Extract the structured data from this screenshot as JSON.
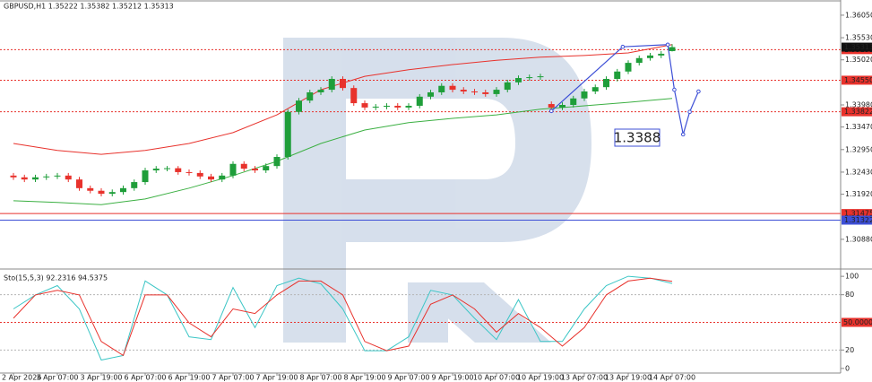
{
  "chart_data": [
    {
      "type": "candlestick",
      "title": "GBPUSD,H1  1.35222 1.35382 1.35212 1.35313",
      "categories": [
        "2 Apr 2026",
        null,
        null,
        null,
        "3 Apr 07:00",
        null,
        null,
        null,
        "3 Apr 19:00",
        null,
        null,
        null,
        "6 Apr 07:00",
        null,
        null,
        null,
        "6 Apr 19:00",
        null,
        null,
        null,
        "7 Apr 07:00",
        null,
        null,
        null,
        "7 Apr 19:00",
        null,
        null,
        null,
        "8 Apr 07:00",
        null,
        null,
        null,
        "8 Apr 19:00",
        null,
        null,
        null,
        "9 Apr 07:00",
        null,
        null,
        null,
        "9 Apr 19:00",
        null,
        null,
        null,
        "10 Apr 07:00",
        null,
        null,
        null,
        "10 Apr 19:00",
        null,
        null,
        null,
        "13 Apr 07:00",
        null,
        null,
        null,
        "13 Apr 19:00",
        null,
        null,
        null,
        "14 Apr 07:00"
      ],
      "ohlc": [
        [
          1.3235,
          1.3241,
          1.3225,
          1.3231
        ],
        [
          1.3231,
          1.3237,
          1.322,
          1.3226
        ],
        [
          1.3226,
          1.3237,
          1.322,
          1.3231
        ],
        [
          1.3231,
          1.3239,
          1.3225,
          1.3233
        ],
        [
          1.3233,
          1.3241,
          1.3227,
          1.3235
        ],
        [
          1.3235,
          1.3241,
          1.322,
          1.3226
        ],
        [
          1.3226,
          1.3232,
          1.32,
          1.3206
        ],
        [
          1.3206,
          1.3212,
          1.3194,
          1.32
        ],
        [
          1.32,
          1.3206,
          1.3187,
          1.3193
        ],
        [
          1.3193,
          1.3203,
          1.3187,
          1.3197
        ],
        [
          1.3197,
          1.3212,
          1.3191,
          1.3206
        ],
        [
          1.3206,
          1.3226,
          1.32,
          1.322
        ],
        [
          1.322,
          1.3253,
          1.3214,
          1.3247
        ],
        [
          1.3247,
          1.3257,
          1.3241,
          1.3251
        ],
        [
          1.3251,
          1.3257,
          1.3245,
          1.3252
        ],
        [
          1.3252,
          1.3257,
          1.3237,
          1.3243
        ],
        [
          1.3243,
          1.3249,
          1.3235,
          1.3241
        ],
        [
          1.3241,
          1.3247,
          1.3227,
          1.3233
        ],
        [
          1.3233,
          1.3239,
          1.322,
          1.3226
        ],
        [
          1.3226,
          1.3241,
          1.322,
          1.3235
        ],
        [
          1.3235,
          1.3268,
          1.3229,
          1.3262
        ],
        [
          1.3262,
          1.3268,
          1.3245,
          1.3251
        ],
        [
          1.3251,
          1.3257,
          1.3241,
          1.3247
        ],
        [
          1.3247,
          1.3263,
          1.3241,
          1.3257
        ],
        [
          1.3257,
          1.3284,
          1.3251,
          1.3278
        ],
        [
          1.3278,
          1.3388,
          1.3272,
          1.3382
        ],
        [
          1.3382,
          1.3414,
          1.3376,
          1.3408
        ],
        [
          1.3408,
          1.3433,
          1.3402,
          1.3427
        ],
        [
          1.3427,
          1.3439,
          1.3421,
          1.3433
        ],
        [
          1.3433,
          1.3464,
          1.3427,
          1.3458
        ],
        [
          1.3458,
          1.3464,
          1.3431,
          1.3437
        ],
        [
          1.3437,
          1.3443,
          1.3396,
          1.3402
        ],
        [
          1.3402,
          1.3408,
          1.3386,
          1.3392
        ],
        [
          1.3392,
          1.34,
          1.3386,
          1.3394
        ],
        [
          1.3394,
          1.3402,
          1.3388,
          1.3396
        ],
        [
          1.3396,
          1.3402,
          1.3386,
          1.3392
        ],
        [
          1.3392,
          1.3402,
          1.3386,
          1.3396
        ],
        [
          1.3396,
          1.3423,
          1.339,
          1.3417
        ],
        [
          1.3417,
          1.3433,
          1.3411,
          1.3427
        ],
        [
          1.3427,
          1.3448,
          1.3421,
          1.3442
        ],
        [
          1.3442,
          1.3448,
          1.3427,
          1.3433
        ],
        [
          1.3433,
          1.3439,
          1.3423,
          1.3429
        ],
        [
          1.3429,
          1.3435,
          1.3421,
          1.3427
        ],
        [
          1.3427,
          1.3433,
          1.3417,
          1.3423
        ],
        [
          1.3423,
          1.3439,
          1.3417,
          1.3433
        ],
        [
          1.3433,
          1.3456,
          1.3427,
          1.345
        ],
        [
          1.345,
          1.3466,
          1.3444,
          1.346
        ],
        [
          1.346,
          1.3468,
          1.3454,
          1.3462
        ],
        [
          1.3462,
          1.347,
          1.3456,
          1.3464
        ],
        [
          1.34,
          1.3406,
          1.3386,
          1.3392
        ],
        [
          1.3392,
          1.3404,
          1.3386,
          1.3398
        ],
        [
          1.3398,
          1.3419,
          1.3392,
          1.3413
        ],
        [
          1.3413,
          1.3435,
          1.3407,
          1.3429
        ],
        [
          1.3429,
          1.3445,
          1.3423,
          1.3439
        ],
        [
          1.3439,
          1.3464,
          1.3433,
          1.3458
        ],
        [
          1.3458,
          1.3481,
          1.3452,
          1.3475
        ],
        [
          1.3475,
          1.3501,
          1.3469,
          1.3495
        ],
        [
          1.3495,
          1.3512,
          1.3489,
          1.3506
        ],
        [
          1.3506,
          1.3518,
          1.35,
          1.3512
        ],
        [
          1.3512,
          1.3522,
          1.3506,
          1.3516
        ],
        [
          1.35222,
          1.35382,
          1.35212,
          1.35313
        ]
      ],
      "up_color": "#1f9e3a",
      "down_color": "#e8322c",
      "bands": [
        {
          "color": "#e8322c",
          "values": [
            1.3309,
            1.3293,
            1.3284,
            1.3293,
            1.3309,
            1.3334,
            1.3375,
            1.3433,
            1.3464,
            1.3479,
            1.3491,
            1.3501,
            1.3508,
            1.3512,
            1.3518,
            1.3537
          ]
        },
        {
          "color": "#3cb043",
          "values": [
            1.3177,
            1.3173,
            1.3168,
            1.3181,
            1.3206,
            1.3235,
            1.3268,
            1.3309,
            1.334,
            1.3357,
            1.3367,
            1.3375,
            1.3388,
            1.3396,
            1.3404,
            1.3413
          ]
        }
      ],
      "forecast": {
        "color": "#3d4fd6",
        "x": [
          49,
          55.5,
          59.6,
          60.2,
          61,
          61.6,
          62.4
        ],
        "values": [
          1.3384,
          1.3532,
          1.3537,
          1.3433,
          1.333,
          1.3382,
          1.3429
        ]
      },
      "annotation": "1.3388",
      "levels": [
        {
          "value": 1.35255,
          "label": "1.35255",
          "color": "#e8322c",
          "style": "dotted"
        },
        {
          "value": 1.3455,
          "label": "1.34550",
          "color": "#e8322c",
          "style": "dotted"
        },
        {
          "value": 1.33822,
          "label": "1.33822",
          "color": "#e8322c",
          "style": "dotted"
        },
        {
          "value": 1.31475,
          "label": "1.31475",
          "color": "#e8322c",
          "style": "solid"
        },
        {
          "value": 1.31322,
          "label": "1.31322",
          "color": "#3d4fd6",
          "style": "solid"
        }
      ],
      "price_label": {
        "value": 1.35313,
        "label": "1.35313"
      },
      "ylim": [
        1.3065,
        1.364
      ],
      "yticks": [
        {
          "value": 1.3605,
          "label": "1.36050"
        },
        {
          "value": 1.3553,
          "label": "1.35530"
        },
        {
          "value": 1.3502,
          "label": "1.35020"
        },
        {
          "value": 1.3398,
          "label": "1.33980"
        },
        {
          "value": 1.3347,
          "label": "1.33470"
        },
        {
          "value": 1.3295,
          "label": "1.32950"
        },
        {
          "value": 1.3243,
          "label": "1.32430"
        },
        {
          "value": 1.3192,
          "label": "1.31920"
        },
        {
          "value": 1.3088,
          "label": "1.30880"
        }
      ]
    },
    {
      "type": "line",
      "title": "Sto(15,5,3) 92.2316 94.5375",
      "series": [
        {
          "color": "#3cc6c6",
          "values": [
            64.6,
            79.8,
            89.9,
            64.6,
            9.1,
            14.1,
            95,
            79.8,
            34.3,
            31.3,
            87.9,
            44.4,
            89.9,
            98,
            91.9,
            64.6,
            19.2,
            19.2,
            34.3,
            84.8,
            79.8,
            54.5,
            31.3,
            74.7,
            29.3,
            29.3,
            64.6,
            89.9,
            100,
            98,
            92.2316
          ]
        },
        {
          "color": "#e8322c",
          "values": [
            54.5,
            79.8,
            84.8,
            79.8,
            29.3,
            14.1,
            79.8,
            79.8,
            49.5,
            34.3,
            64.6,
            59.6,
            79.8,
            94.9,
            94.9,
            79.8,
            29.3,
            19.2,
            24.2,
            69.7,
            79.8,
            64.6,
            39.4,
            59.6,
            44.4,
            24.2,
            44.4,
            79.8,
            94.9,
            98,
            94.5375
          ]
        }
      ],
      "levels": [
        {
          "value": 80,
          "color": "#b5b5b5"
        },
        {
          "value": 50,
          "label": "50.0000",
          "color": "#e8322c"
        },
        {
          "value": 20,
          "color": "#b5b5b5"
        }
      ],
      "ylim": [
        -5,
        105
      ],
      "yticks": [
        0,
        20,
        80,
        100
      ]
    }
  ]
}
